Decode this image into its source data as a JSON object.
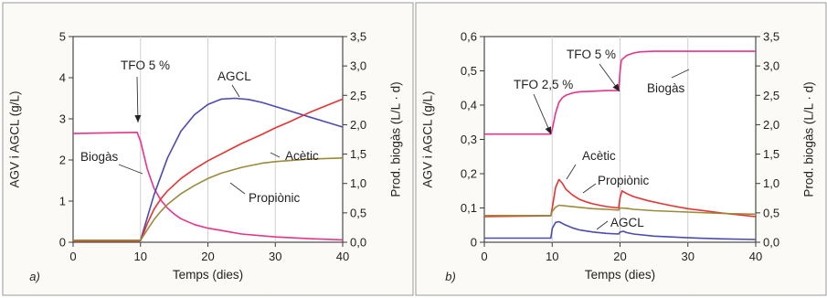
{
  "chart_data": [
    {
      "type": "line",
      "panel_label": "a)",
      "xlabel": "Temps (dies)",
      "ylabel": "AGV i AGCL (g/L)",
      "y2label": "Prod. biogàs (L/L · d)",
      "xlim": [
        0,
        40
      ],
      "ylim": [
        0,
        5
      ],
      "y2lim": [
        0,
        3.5
      ],
      "xticks": [
        "0",
        "10",
        "20",
        "30",
        "40"
      ],
      "yticks": [
        "0",
        "1",
        "2",
        "3",
        "4",
        "5"
      ],
      "y2ticks": [
        "0,0",
        "0,5",
        "1,0",
        "1,5",
        "2,0",
        "2,5",
        "3,0",
        "3,5"
      ],
      "grid": "vertical",
      "series": [
        {
          "name": "Biogàs",
          "axis": "right",
          "color": "#e8338c",
          "x": [
            0,
            9.5,
            10,
            11,
            12,
            13,
            14,
            15,
            16,
            18,
            20,
            25,
            30,
            35,
            40
          ],
          "y": [
            1.85,
            1.87,
            1.72,
            1.25,
            0.92,
            0.72,
            0.58,
            0.48,
            0.4,
            0.3,
            0.24,
            0.14,
            0.09,
            0.06,
            0.04
          ]
        },
        {
          "name": "AGCL",
          "axis": "left",
          "color": "#4b4bb2",
          "x": [
            0,
            10,
            12,
            14,
            16,
            18,
            20,
            22,
            24,
            26,
            28,
            30,
            32,
            35,
            38,
            40
          ],
          "y": [
            0.05,
            0.05,
            1.15,
            2.05,
            2.7,
            3.1,
            3.35,
            3.48,
            3.5,
            3.47,
            3.4,
            3.3,
            3.2,
            3.05,
            2.9,
            2.8
          ]
        },
        {
          "name": "Acètic",
          "axis": "left",
          "color": "#e83232",
          "x": [
            0,
            10,
            11,
            12,
            13,
            14,
            16,
            18,
            20,
            22,
            25,
            28,
            30,
            32,
            35,
            38,
            40
          ],
          "y": [
            0.03,
            0.03,
            0.45,
            0.8,
            1.05,
            1.25,
            1.55,
            1.78,
            1.98,
            2.15,
            2.4,
            2.62,
            2.78,
            2.92,
            3.15,
            3.35,
            3.48
          ]
        },
        {
          "name": "Propiònic",
          "axis": "left",
          "color": "#9a8a3a",
          "x": [
            0,
            10,
            11,
            12,
            13,
            14,
            16,
            18,
            20,
            22,
            25,
            28,
            30,
            35,
            40
          ],
          "y": [
            0.05,
            0.05,
            0.3,
            0.55,
            0.75,
            0.92,
            1.18,
            1.38,
            1.55,
            1.68,
            1.82,
            1.92,
            1.96,
            2.02,
            2.05
          ]
        }
      ],
      "annotations": [
        "TFO 5 %",
        "AGCL",
        "Biogàs",
        "Acètic",
        "Propiònic"
      ]
    },
    {
      "type": "line",
      "panel_label": "b)",
      "xlabel": "Temps (dies)",
      "ylabel": "AGV i AGCL (g/L)",
      "y2label": "Prod. biogàs (L/L · d)",
      "xlim": [
        0,
        40
      ],
      "ylim": [
        0,
        0.6
      ],
      "y2lim": [
        0,
        3.5
      ],
      "xticks": [
        "0",
        "10",
        "20",
        "30",
        "40"
      ],
      "yticks": [
        "0",
        "0,1",
        "0,2",
        "0,3",
        "0,4",
        "0,5",
        "0,6"
      ],
      "y2ticks": [
        "0,0",
        "0,5",
        "1,0",
        "1,5",
        "2,0",
        "2,5",
        "3,0",
        "3,5"
      ],
      "grid": "vertical",
      "series": [
        {
          "name": "Biogàs",
          "axis": "right",
          "color": "#e8338c",
          "x": [
            0,
            9.8,
            10,
            10.5,
            11,
            11.5,
            12,
            13,
            14,
            16,
            18,
            19.8,
            20,
            20.2,
            21,
            22,
            23,
            25,
            30,
            35,
            40
          ],
          "y": [
            1.84,
            1.84,
            1.92,
            2.2,
            2.38,
            2.46,
            2.5,
            2.54,
            2.56,
            2.57,
            2.58,
            2.58,
            2.9,
            3.1,
            3.18,
            3.22,
            3.24,
            3.25,
            3.25,
            3.25,
            3.25
          ]
        },
        {
          "name": "Acètic",
          "axis": "left",
          "color": "#e83232",
          "x": [
            0,
            9.8,
            10,
            10.5,
            11,
            11.5,
            12,
            13,
            14,
            15,
            16,
            17,
            18,
            19.8,
            20,
            20.3,
            21,
            22,
            24,
            26,
            28,
            30,
            35,
            40
          ],
          "y": [
            0.075,
            0.077,
            0.1,
            0.16,
            0.183,
            0.172,
            0.155,
            0.138,
            0.125,
            0.118,
            0.112,
            0.108,
            0.104,
            0.1,
            0.13,
            0.15,
            0.142,
            0.133,
            0.122,
            0.113,
            0.105,
            0.098,
            0.085,
            0.075
          ]
        },
        {
          "name": "Propiònic",
          "axis": "left",
          "color": "#9a8a3a",
          "x": [
            0,
            9.8,
            10,
            10.5,
            11,
            12,
            14,
            16,
            18,
            19.8,
            20,
            21,
            22,
            25,
            30,
            35,
            40
          ],
          "y": [
            0.078,
            0.078,
            0.09,
            0.102,
            0.108,
            0.106,
            0.102,
            0.098,
            0.096,
            0.094,
            0.1,
            0.099,
            0.096,
            0.092,
            0.088,
            0.084,
            0.082
          ]
        },
        {
          "name": "AGCL",
          "axis": "left",
          "color": "#4b4bb2",
          "x": [
            0,
            9.8,
            10,
            10.5,
            11,
            12,
            13,
            14,
            16,
            18,
            19.8,
            20,
            20.5,
            21,
            22,
            25,
            30,
            35,
            40
          ],
          "y": [
            0.012,
            0.012,
            0.04,
            0.058,
            0.06,
            0.05,
            0.042,
            0.036,
            0.03,
            0.026,
            0.024,
            0.03,
            0.032,
            0.028,
            0.024,
            0.018,
            0.013,
            0.01,
            0.008
          ]
        }
      ],
      "annotations": [
        "TFO 2,5 %",
        "TFO 5 %",
        "Biogàs",
        "Acètic",
        "Propiònic",
        "AGCL"
      ]
    }
  ]
}
